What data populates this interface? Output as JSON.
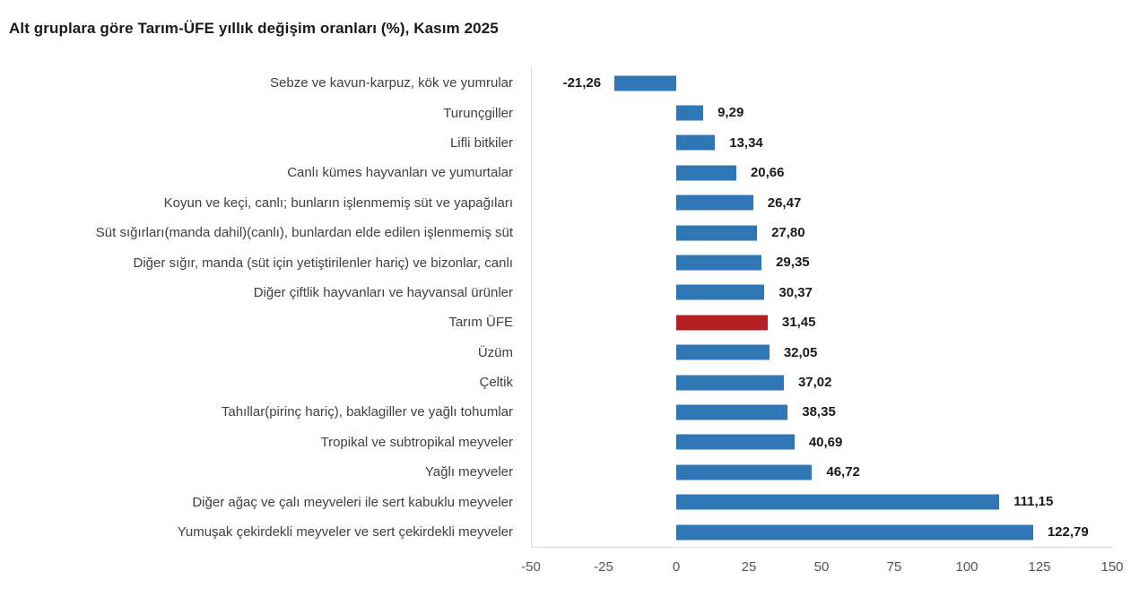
{
  "chart_data": {
    "type": "bar",
    "orientation": "horizontal",
    "title": "Alt gruplara göre Tarım-ÜFE yıllık değişim oranları (%), Kasım 2025",
    "categories": [
      "Sebze ve kavun-karpuz, kök ve yumrular",
      "Turunçgiller",
      "Lifli bitkiler",
      "Canlı kümes hayvanları ve yumurtalar",
      "Koyun ve keçi, canlı; bunların işlenmemiş süt ve yapağıları",
      "Süt sığırları(manda dahil)(canlı), bunlardan elde edilen işlenmemiş süt",
      "Diğer sığır, manda (süt için yetiştirilenler hariç) ve bizonlar, canlı",
      "Diğer çiftlik hayvanları ve hayvansal ürünler",
      "Tarım ÜFE",
      "Üzüm",
      "Çeltik",
      "Tahıllar(pirinç hariç), baklagiller ve yağlı tohumlar",
      "Tropikal ve subtropikal meyveler",
      "Yağlı meyveler",
      "Diğer ağaç ve çalı meyveleri ile sert kabuklu meyveler",
      "Yumuşak çekirdekli meyveler ve sert çekirdekli meyveler"
    ],
    "values": [
      -21.26,
      9.29,
      13.34,
      20.66,
      26.47,
      27.8,
      29.35,
      30.37,
      31.45,
      32.05,
      37.02,
      38.35,
      40.69,
      46.72,
      111.15,
      122.79
    ],
    "value_labels": [
      "-21,26",
      "9,29",
      "13,34",
      "20,66",
      "26,47",
      "27,80",
      "29,35",
      "30,37",
      "31,45",
      "32,05",
      "37,02",
      "38,35",
      "40,69",
      "46,72",
      "111,15",
      "122,79"
    ],
    "highlight_category": "Tarım ÜFE",
    "highlight_index": 8,
    "bar_color": "#2f76b5",
    "highlight_color": "#b41f24",
    "xlabel": "",
    "ylabel": "",
    "xlim": [
      -50,
      150
    ],
    "x_ticks": [
      -50,
      -25,
      0,
      25,
      50,
      75,
      100,
      125,
      150
    ],
    "grid": "left and bottom axis lines only",
    "legend": "none"
  }
}
